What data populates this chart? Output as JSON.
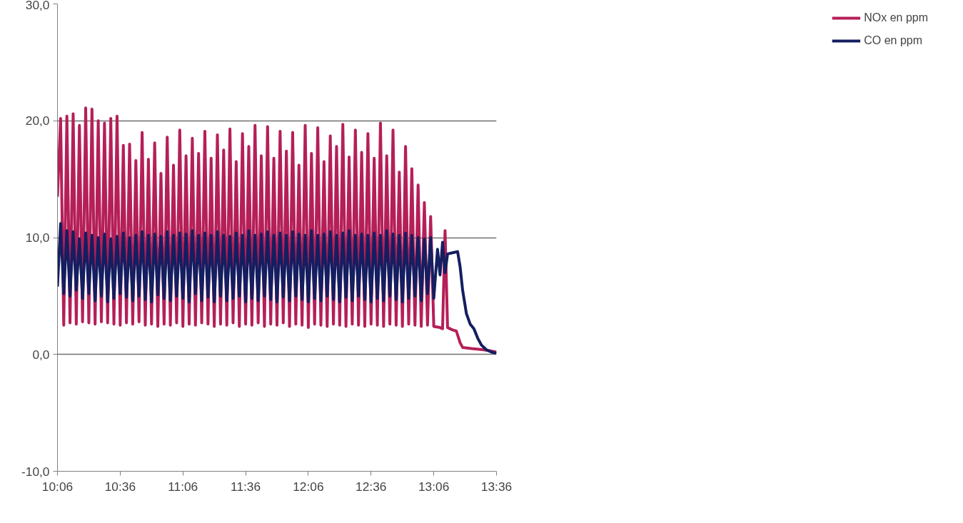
{
  "chart_data": {
    "type": "line",
    "xlim": [
      10.1,
      13.6
    ],
    "ylim": [
      -10,
      30
    ],
    "xticks": [
      {
        "value": 10.1,
        "label": "10:06"
      },
      {
        "value": 10.6,
        "label": "10:36"
      },
      {
        "value": 11.1,
        "label": "11:06"
      },
      {
        "value": 11.6,
        "label": "11:36"
      },
      {
        "value": 12.1,
        "label": "12:06"
      },
      {
        "value": 12.6,
        "label": "12:36"
      },
      {
        "value": 13.1,
        "label": "13:06"
      },
      {
        "value": 13.6,
        "label": "13:36"
      }
    ],
    "yticks": [
      {
        "value": -10,
        "label": "-10,0"
      },
      {
        "value": 0,
        "label": "0,0"
      },
      {
        "value": 10,
        "label": "10,0"
      },
      {
        "value": 20,
        "label": "20,0"
      },
      {
        "value": 30,
        "label": "30,0"
      }
    ],
    "grid": "y",
    "legend": "right",
    "line_style": "solid",
    "marker": "none",
    "series": [
      {
        "name": "NOx en ppm",
        "color": "#b51f58",
        "x": [
          10.1,
          10.125,
          10.15,
          10.175,
          10.2,
          10.225,
          10.25,
          10.275,
          10.3,
          10.325,
          10.35,
          10.375,
          10.4,
          10.425,
          10.45,
          10.475,
          10.5,
          10.525,
          10.55,
          10.575,
          10.6,
          10.625,
          10.65,
          10.675,
          10.7,
          10.725,
          10.75,
          10.775,
          10.8,
          10.825,
          10.85,
          10.875,
          10.9,
          10.925,
          10.95,
          10.975,
          11.0,
          11.025,
          11.05,
          11.075,
          11.1,
          11.125,
          11.15,
          11.175,
          11.2,
          11.225,
          11.25,
          11.275,
          11.3,
          11.325,
          11.35,
          11.375,
          11.4,
          11.425,
          11.45,
          11.475,
          11.5,
          11.525,
          11.55,
          11.575,
          11.6,
          11.625,
          11.65,
          11.675,
          11.7,
          11.725,
          11.75,
          11.775,
          11.8,
          11.825,
          11.85,
          11.875,
          11.9,
          11.925,
          11.95,
          11.975,
          12.0,
          12.025,
          12.05,
          12.075,
          12.1,
          12.125,
          12.15,
          12.175,
          12.2,
          12.225,
          12.25,
          12.275,
          12.3,
          12.325,
          12.35,
          12.375,
          12.4,
          12.425,
          12.45,
          12.475,
          12.5,
          12.525,
          12.55,
          12.575,
          12.6,
          12.625,
          12.65,
          12.675,
          12.7,
          12.725,
          12.75,
          12.775,
          12.8,
          12.825,
          12.85,
          12.875,
          12.9,
          12.925,
          12.95,
          12.975,
          13.0,
          13.025,
          13.05,
          13.075,
          13.1,
          13.15,
          13.17,
          13.19,
          13.21,
          13.25,
          13.28,
          13.31,
          13.33,
          13.4,
          13.5,
          13.55,
          13.6
        ],
        "values": [
          13.5,
          20.2,
          2.5,
          20.4,
          2.7,
          20.6,
          2.6,
          19.6,
          2.8,
          21.1,
          2.7,
          21.0,
          2.6,
          20.0,
          2.8,
          19.8,
          2.7,
          20.2,
          2.6,
          20.4,
          2.5,
          17.9,
          2.7,
          18.0,
          2.6,
          16.6,
          2.8,
          19.0,
          2.5,
          16.7,
          2.6,
          18.1,
          2.4,
          15.5,
          2.6,
          18.6,
          2.5,
          16.2,
          2.7,
          19.2,
          2.4,
          17.0,
          2.6,
          18.5,
          2.5,
          17.2,
          2.7,
          19.1,
          2.6,
          16.8,
          2.4,
          18.8,
          2.6,
          17.5,
          2.5,
          19.3,
          2.7,
          16.5,
          2.4,
          18.9,
          2.6,
          17.8,
          2.5,
          19.6,
          2.7,
          17.0,
          2.4,
          19.5,
          2.6,
          16.8,
          2.5,
          19.1,
          2.7,
          17.4,
          2.4,
          19.0,
          2.6,
          16.2,
          2.5,
          19.6,
          2.3,
          17.2,
          2.6,
          19.4,
          2.5,
          16.5,
          2.4,
          18.7,
          2.6,
          17.8,
          2.5,
          19.7,
          2.4,
          16.9,
          2.6,
          19.2,
          2.5,
          17.3,
          2.4,
          18.9,
          2.6,
          16.8,
          2.5,
          19.8,
          2.4,
          17.0,
          2.6,
          19.2,
          2.5,
          15.6,
          2.4,
          17.8,
          2.6,
          15.9,
          2.5,
          14.5,
          2.4,
          13.0,
          2.5,
          11.8,
          2.4,
          2.3,
          2.2,
          10.6,
          2.3,
          2.1,
          2.0,
          1.0,
          0.6,
          0.5,
          0.4,
          0.3,
          0.2
        ]
      },
      {
        "name": "CO en ppm",
        "color": "#141e60",
        "x": [
          10.1,
          10.125,
          10.15,
          10.175,
          10.2,
          10.225,
          10.25,
          10.275,
          10.3,
          10.325,
          10.35,
          10.375,
          10.4,
          10.425,
          10.45,
          10.475,
          10.5,
          10.525,
          10.55,
          10.575,
          10.6,
          10.625,
          10.65,
          10.675,
          10.7,
          10.725,
          10.75,
          10.775,
          10.8,
          10.825,
          10.85,
          10.875,
          10.9,
          10.925,
          10.95,
          10.975,
          11.0,
          11.025,
          11.05,
          11.075,
          11.1,
          11.125,
          11.15,
          11.175,
          11.2,
          11.225,
          11.25,
          11.275,
          11.3,
          11.325,
          11.35,
          11.375,
          11.4,
          11.425,
          11.45,
          11.475,
          11.5,
          11.525,
          11.55,
          11.575,
          11.6,
          11.625,
          11.65,
          11.675,
          11.7,
          11.725,
          11.75,
          11.775,
          11.8,
          11.825,
          11.85,
          11.875,
          11.9,
          11.925,
          11.95,
          11.975,
          12.0,
          12.025,
          12.05,
          12.075,
          12.1,
          12.125,
          12.15,
          12.175,
          12.2,
          12.225,
          12.25,
          12.275,
          12.3,
          12.325,
          12.35,
          12.375,
          12.4,
          12.425,
          12.45,
          12.475,
          12.5,
          12.525,
          12.55,
          12.575,
          12.6,
          12.625,
          12.65,
          12.675,
          12.7,
          12.725,
          12.75,
          12.775,
          12.8,
          12.825,
          12.85,
          12.875,
          12.9,
          12.925,
          12.95,
          12.975,
          13.0,
          13.025,
          13.05,
          13.075,
          13.1,
          13.13,
          13.15,
          13.17,
          13.19,
          13.21,
          13.25,
          13.29,
          13.31,
          13.33,
          13.36,
          13.39,
          13.42,
          13.45,
          13.48,
          13.52,
          13.56,
          13.6
        ],
        "values": [
          5.8,
          11.2,
          5.2,
          10.6,
          5.0,
          10.5,
          5.5,
          9.9,
          4.8,
          10.4,
          5.2,
          10.2,
          4.6,
          10.0,
          5.0,
          10.3,
          4.5,
          9.9,
          4.8,
          10.1,
          5.2,
          10.4,
          4.9,
          10.0,
          4.6,
          10.2,
          5.0,
          10.5,
          4.7,
          10.2,
          4.5,
          10.3,
          5.1,
          10.1,
          4.8,
          10.5,
          4.6,
          10.2,
          5.0,
          10.4,
          4.8,
          10.3,
          4.5,
          10.6,
          5.2,
          10.2,
          4.6,
          10.4,
          4.9,
          10.2,
          4.5,
          10.5,
          5.0,
          10.2,
          4.6,
          10.1,
          4.8,
          10.4,
          5.0,
          10.2,
          4.5,
          10.6,
          4.8,
          10.2,
          4.6,
          10.3,
          5.0,
          10.5,
          4.7,
          10.2,
          4.5,
          10.4,
          4.9,
          10.2,
          4.6,
          10.5,
          5.0,
          10.3,
          4.7,
          10.2,
          4.5,
          10.6,
          4.8,
          10.2,
          4.6,
          10.3,
          5.0,
          10.5,
          4.7,
          10.2,
          4.5,
          10.4,
          4.9,
          10.6,
          4.6,
          10.2,
          5.0,
          10.3,
          4.7,
          10.2,
          4.5,
          10.4,
          4.8,
          10.2,
          4.6,
          10.6,
          5.0,
          10.3,
          4.7,
          10.2,
          4.5,
          10.4,
          4.8,
          10.2,
          5.0,
          10.0,
          4.6,
          9.9,
          5.2,
          10.0,
          4.8,
          9.0,
          6.8,
          9.6,
          7.0,
          8.6,
          8.7,
          8.8,
          7.5,
          5.5,
          3.5,
          2.6,
          2.2,
          1.4,
          0.8,
          0.4,
          0.2,
          0.1
        ]
      }
    ]
  }
}
